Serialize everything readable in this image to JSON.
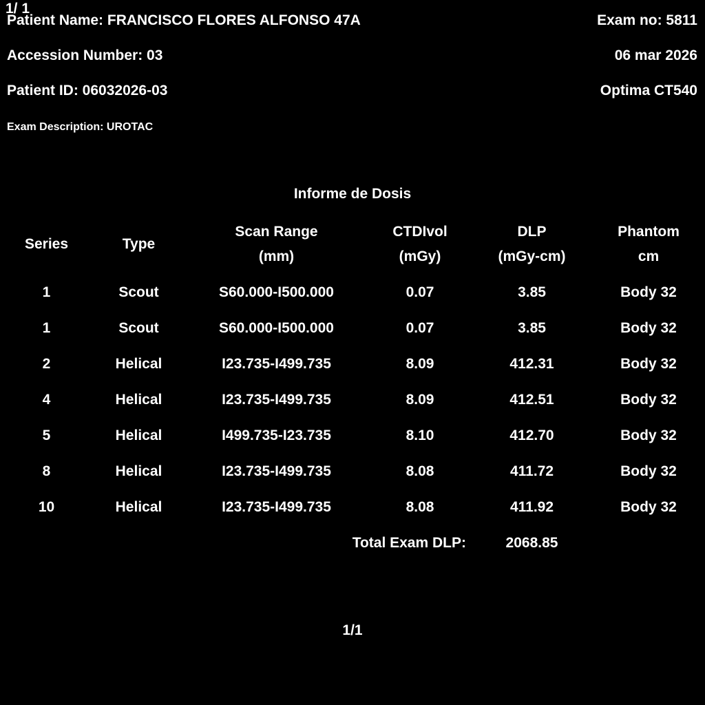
{
  "page_overlay": {
    "text": "1/ 1"
  },
  "header": {
    "patient_name": "Patient Name: FRANCISCO FLORES ALFONSO 47A",
    "exam_no": "Exam no: 5811",
    "accession_number": "Accession Number: 03",
    "exam_date": "06 mar 2026",
    "patient_id": "Patient ID: 06032026-03",
    "scanner_model": "Optima CT540",
    "exam_description": "Exam Description: UROTAC"
  },
  "report": {
    "title": "Informe de Dosis",
    "columns": [
      {
        "line1": "Series",
        "line2": ""
      },
      {
        "line1": "Type",
        "line2": ""
      },
      {
        "line1": "Scan Range",
        "line2": "(mm)"
      },
      {
        "line1": "CTDIvol",
        "line2": "(mGy)"
      },
      {
        "line1": "DLP",
        "line2": "(mGy-cm)"
      },
      {
        "line1": "Phantom",
        "line2": "cm"
      }
    ],
    "rows": [
      {
        "series": "1",
        "type": "Scout",
        "scan_range": "S60.000-I500.000",
        "ctdivol": "0.07",
        "dlp": "3.85",
        "phantom": "Body 32"
      },
      {
        "series": "1",
        "type": "Scout",
        "scan_range": "S60.000-I500.000",
        "ctdivol": "0.07",
        "dlp": "3.85",
        "phantom": "Body 32"
      },
      {
        "series": "2",
        "type": "Helical",
        "scan_range": "I23.735-I499.735",
        "ctdivol": "8.09",
        "dlp": "412.31",
        "phantom": "Body 32"
      },
      {
        "series": "4",
        "type": "Helical",
        "scan_range": "I23.735-I499.735",
        "ctdivol": "8.09",
        "dlp": "412.51",
        "phantom": "Body 32"
      },
      {
        "series": "5",
        "type": "Helical",
        "scan_range": "I499.735-I23.735",
        "ctdivol": "8.10",
        "dlp": "412.70",
        "phantom": "Body 32"
      },
      {
        "series": "8",
        "type": "Helical",
        "scan_range": "I23.735-I499.735",
        "ctdivol": "8.08",
        "dlp": "411.72",
        "phantom": "Body 32"
      },
      {
        "series": "10",
        "type": "Helical",
        "scan_range": "I23.735-I499.735",
        "ctdivol": "8.08",
        "dlp": "411.92",
        "phantom": "Body 32"
      }
    ],
    "total_label": "Total Exam DLP:",
    "total_value": "2068.85"
  },
  "footer": {
    "page": "1/1"
  },
  "colors": {
    "background": "#000000",
    "text": "#ffffff"
  }
}
